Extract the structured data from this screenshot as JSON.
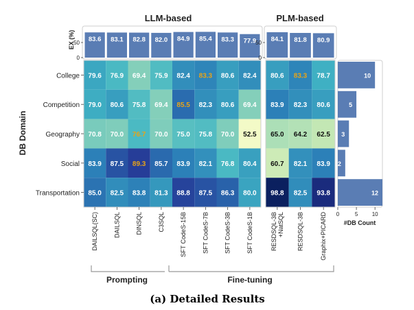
{
  "titles": {
    "llm": "LLM-based",
    "plm": "PLM-based",
    "ex_axis": "EX (%)",
    "y_axis": "DB Domain",
    "count_axis": "#DB Count",
    "caption": "(a) Detailed Results"
  },
  "groups": {
    "prompting": "Prompting",
    "finetuning": "Fine-tuning"
  },
  "chart_data": [
    {
      "type": "bar",
      "title": "",
      "ylabel": "EX (%)",
      "yticks": [
        "50",
        "0"
      ],
      "categories": [
        "DAILSQL(SC)",
        "DAILSQL",
        "DINSQL",
        "C3SQL",
        "SFT CodeS-15B",
        "SFT CodeS-7B",
        "SFT CodeS-3B",
        "SFT CodeS-1B"
      ],
      "values": [
        83.6,
        83.1,
        82.8,
        82.0,
        84.9,
        85.4,
        83.3,
        77.9
      ],
      "labels": [
        "83.6",
        "83.1",
        "82.8",
        "82.0",
        "84.9",
        "85.4",
        "83.3",
        "77.9"
      ],
      "group": "LLM-based",
      "bar_color": "#5a7db4"
    },
    {
      "type": "bar",
      "title": "",
      "ylabel": "",
      "yticks": [
        "50",
        "0"
      ],
      "categories": [
        "RESDSQL-3B +NatSQL",
        "RESDSQL-3B",
        "Graphix+PICARD"
      ],
      "values": [
        84.1,
        81.8,
        80.9
      ],
      "labels": [
        "84.1",
        "81.8",
        "80.9"
      ],
      "group": "PLM-based",
      "bar_color": "#5a7db4"
    },
    {
      "type": "heatmap",
      "ylabel": "DB Domain",
      "rows": [
        "College",
        "Competition",
        "Geography",
        "Social",
        "Transportation"
      ],
      "columns_llm": [
        "DAILSQL(SC)",
        "DAILSQL",
        "DINSQL",
        "C3SQL",
        "SFT CodeS-15B",
        "SFT CodeS-7B",
        "SFT CodeS-3B",
        "SFT CodeS-1B"
      ],
      "columns_plm": [
        "RESDSQL-3B\n+NatSQL",
        "RESDSQL-3B",
        "Graphix+PICARD"
      ],
      "values_llm": [
        [
          79.6,
          76.9,
          69.4,
          75.9,
          82.4,
          83.3,
          80.6,
          82.4
        ],
        [
          79.0,
          80.6,
          75.8,
          69.4,
          85.5,
          82.3,
          80.6,
          69.4
        ],
        [
          70.8,
          70.0,
          76.7,
          70.0,
          75.0,
          75.8,
          70.0,
          52.5
        ],
        [
          83.9,
          87.5,
          89.3,
          85.7,
          83.9,
          82.1,
          76.8,
          80.4
        ],
        [
          85.0,
          82.5,
          83.8,
          81.3,
          88.8,
          87.5,
          86.3,
          80.0
        ]
      ],
      "labels_llm": [
        [
          "79.6",
          "76.9",
          "69.4",
          "75.9",
          "82.4",
          "83.3",
          "80.6",
          "82.4"
        ],
        [
          "79.0",
          "80.6",
          "75.8",
          "69.4",
          "85.5",
          "82.3",
          "80.6",
          "69.4"
        ],
        [
          "70.8",
          "70.0",
          "76.7",
          "70.0",
          "75.0",
          "75.8",
          "70.0",
          "52.5"
        ],
        [
          "83.9",
          "87.5",
          "89.3",
          "85.7",
          "83.9",
          "82.1",
          "76.8",
          "80.4"
        ],
        [
          "85.0",
          "82.5",
          "83.8",
          "81.3",
          "88.8",
          "87.5",
          "86.3",
          "80.0"
        ]
      ],
      "values_plm": [
        [
          80.6,
          83.3,
          78.7
        ],
        [
          83.9,
          82.3,
          80.6
        ],
        [
          65.0,
          64.2,
          62.5
        ],
        [
          60.7,
          82.1,
          83.9
        ],
        [
          98.8,
          82.5,
          93.8
        ]
      ],
      "labels_plm": [
        [
          "80.6",
          "83.3",
          "78.7"
        ],
        [
          "83.9",
          "82.3",
          "80.6"
        ],
        [
          "65.0",
          "64.2",
          "62.5"
        ],
        [
          "60.7",
          "82.1",
          "83.9"
        ],
        [
          "98.8",
          "82.5",
          "93.8"
        ]
      ],
      "highlight_best_color": "#e8a317"
    },
    {
      "type": "bar",
      "orientation": "horizontal",
      "xlabel": "#DB Count",
      "xticks": [
        "0",
        "5",
        "10"
      ],
      "xlim": [
        0,
        12
      ],
      "categories": [
        "College",
        "Competition",
        "Geography",
        "Social",
        "Transportation"
      ],
      "values": [
        10,
        5,
        3,
        2,
        12
      ],
      "labels": [
        "10",
        "5",
        "3",
        "2",
        "12"
      ],
      "bar_color": "#5a7db4"
    }
  ]
}
